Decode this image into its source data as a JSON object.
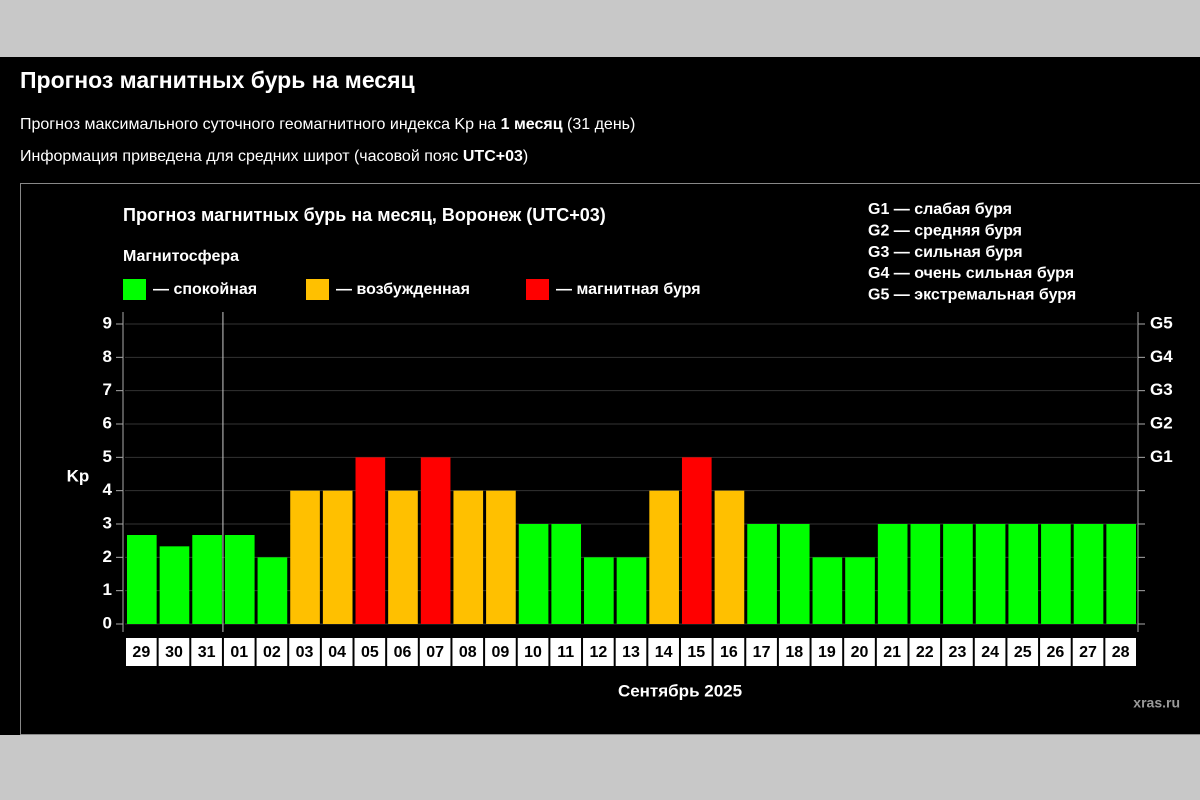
{
  "header": {
    "title": "Прогноз магнитных бурь на месяц",
    "line1": [
      "Прогноз максимального суточного геомагнитного индекса Kp на ",
      "1 месяц",
      " (31 день)"
    ],
    "line2": [
      "Информация приведена для средних широт (часовой пояс ",
      "UTC+03",
      ")"
    ]
  },
  "chart_data": {
    "type": "bar",
    "title": "Прогноз магнитных бурь на месяц, Воронеж (UTC+03)",
    "legend_title": "Магнитосфера",
    "legend": [
      {
        "color": "#00ff00",
        "label": "— спокойная"
      },
      {
        "color": "#ffc000",
        "label": "— возбужденная"
      },
      {
        "color": "#ff0000",
        "label": "— магнитная буря"
      }
    ],
    "storm_scale": [
      "G1 — слабая буря",
      "G2 — средняя буря",
      "G3 — сильная буря",
      "G4 — очень сильная буря",
      "G5 — экстремальная буря"
    ],
    "y_label": "Kp",
    "x_label": "Сентябрь 2025",
    "watermark": "xras.ru",
    "categories": [
      "29",
      "30",
      "31",
      "01",
      "02",
      "03",
      "04",
      "05",
      "06",
      "07",
      "08",
      "09",
      "10",
      "11",
      "12",
      "13",
      "14",
      "15",
      "16",
      "17",
      "18",
      "19",
      "20",
      "21",
      "22",
      "23",
      "24",
      "25",
      "26",
      "27",
      "28"
    ],
    "values": [
      2.67,
      2.33,
      2.67,
      2.67,
      2,
      4,
      4,
      5,
      4,
      5,
      4,
      4,
      3,
      3,
      2,
      2,
      4,
      5,
      4,
      3,
      3,
      2,
      2,
      3,
      3,
      3,
      3,
      3,
      3,
      3,
      3
    ],
    "colors": [
      "#00ff00",
      "#00ff00",
      "#00ff00",
      "#00ff00",
      "#00ff00",
      "#ffc000",
      "#ffc000",
      "#ff0000",
      "#ffc000",
      "#ff0000",
      "#ffc000",
      "#ffc000",
      "#00ff00",
      "#00ff00",
      "#00ff00",
      "#00ff00",
      "#ffc000",
      "#ff0000",
      "#ffc000",
      "#00ff00",
      "#00ff00",
      "#00ff00",
      "#00ff00",
      "#00ff00",
      "#00ff00",
      "#00ff00",
      "#00ff00",
      "#00ff00",
      "#00ff00",
      "#00ff00",
      "#00ff00"
    ],
    "ylim": [
      0,
      9
    ],
    "yticks": [
      0,
      1,
      2,
      3,
      4,
      5,
      6,
      7,
      8,
      9
    ],
    "y2lim": [
      0,
      9
    ],
    "y2ticks": [
      {
        "value": 5,
        "label": "G1"
      },
      {
        "value": 6,
        "label": "G2"
      },
      {
        "value": 7,
        "label": "G3"
      },
      {
        "value": 8,
        "label": "G4"
      },
      {
        "value": 9,
        "label": "G5"
      }
    ],
    "grid": true
  }
}
